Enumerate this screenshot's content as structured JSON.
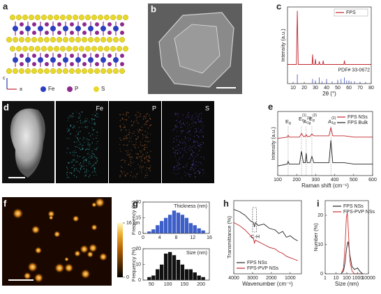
{
  "images": {
    "a": {
      "label": "a",
      "axes": [
        "c",
        "a"
      ],
      "legend": [
        {
          "name": "Fe",
          "color": "#2b3fbf"
        },
        {
          "name": "P",
          "color": "#8e2a8e"
        },
        {
          "name": "S",
          "color": "#e8d82a"
        }
      ]
    },
    "b": {
      "label": "b"
    },
    "d": {
      "label": "d",
      "maps": [
        {
          "name": "Fe",
          "color": "#3fc0c0"
        },
        {
          "name": "P",
          "color": "#c0703a"
        },
        {
          "name": "S",
          "color": "#6a4ad0"
        }
      ]
    },
    "f": {
      "label": "f",
      "colorbar": {
        "ticks": [
          0,
          {
            "value": 16,
            "label": "16 nm"
          }
        ]
      }
    }
  },
  "chart_data": [
    {
      "type": "line",
      "label": "c",
      "xlabel": "2θ (°)",
      "ylabel": "Intensity (a.u.)",
      "xlim": [
        5,
        80
      ],
      "ylim": [
        0,
        100
      ],
      "xticks": [
        10,
        20,
        30,
        40,
        50,
        60,
        70,
        80
      ],
      "legend": "upper right",
      "series": [
        {
          "name": "FPS",
          "color": "#c0262d",
          "x": [
            5,
            13,
            13.8,
            14.6,
            27,
            27.5,
            28,
            29.5,
            30,
            30.5,
            33,
            33.5,
            34,
            36.5,
            37,
            37.5,
            55.5,
            56,
            56.5,
            80
          ],
          "values": [
            25,
            25,
            95,
            25,
            25,
            38,
            25,
            25,
            32,
            25,
            25,
            29,
            25,
            25,
            30,
            25,
            25,
            30,
            25,
            25
          ]
        },
        {
          "name": "PDF# 33-0672",
          "color": "#3b4cc0",
          "mark": "stick",
          "x": [
            13.8,
            27.5,
            30,
            33.5,
            36,
            40,
            45,
            50,
            53,
            56,
            58,
            60,
            62,
            65,
            70,
            75
          ],
          "values": [
            12,
            6,
            4,
            8,
            3,
            6,
            3,
            5,
            6,
            8,
            4,
            4,
            3,
            3,
            2,
            2
          ]
        }
      ]
    },
    {
      "type": "line",
      "label": "e",
      "xlabel": "Raman shift (cm⁻¹)",
      "ylabel": "Intensity (a.u.)",
      "xlim": [
        100,
        600
      ],
      "ylim": [
        0,
        100
      ],
      "xticks": [
        100,
        200,
        300,
        400,
        500,
        600
      ],
      "legend": "upper right",
      "x": [
        100,
        150,
        155,
        160,
        215,
        225,
        235,
        245,
        250,
        255,
        270,
        280,
        290,
        370,
        380,
        390,
        450,
        500,
        600
      ],
      "series": [
        {
          "name": "FPS NSs",
          "color": "#c0262d",
          "values": [
            58,
            60,
            63,
            60,
            60,
            66,
            61,
            61,
            64,
            61,
            61,
            65,
            62,
            62,
            75,
            62,
            62,
            60,
            60
          ]
        },
        {
          "name": "FPS Bulk",
          "color": "#222222",
          "values": [
            15,
            18,
            22,
            18,
            18,
            38,
            20,
            20,
            35,
            20,
            20,
            30,
            20,
            20,
            55,
            20,
            20,
            18,
            18
          ]
        }
      ],
      "peaks": [
        {
          "x": 155,
          "label": {
            "base": "E",
            "sub": "g"
          }
        },
        {
          "x": 225,
          "label": {
            "base": "E",
            "sub": "g",
            "sup": "(1)"
          }
        },
        {
          "x": 250,
          "label": {
            "base": "A",
            "sub": "1g",
            "sup": "(1)"
          }
        },
        {
          "x": 280,
          "label": {
            "base": "E",
            "sub": "g",
            "sup": "(2)"
          }
        },
        {
          "x": 380,
          "label": {
            "base": "A",
            "sub": "1g",
            "sup": "(2)"
          }
        }
      ]
    },
    {
      "type": "histogram",
      "label": "g",
      "title": "Thickness (nm)",
      "ylabel": "Frequency (%)",
      "color": "#3e5fc8",
      "bins": [
        1,
        2,
        3,
        4,
        5,
        6,
        7,
        8,
        9,
        10,
        11,
        12,
        13,
        14,
        15
      ],
      "values": [
        2,
        4,
        8,
        12,
        15,
        18,
        22,
        20,
        18,
        15,
        10,
        8,
        5,
        3
      ],
      "xlim": [
        0,
        16
      ],
      "xticks": [
        0,
        4,
        8,
        12,
        16
      ],
      "ylim": [
        0,
        30
      ],
      "yticks": [
        0,
        15,
        30
      ]
    },
    {
      "type": "histogram",
      "title": "Size (nm)",
      "ylabel": "Frequency (%)",
      "color": "#111111",
      "bins": [
        37.5,
        50,
        62.5,
        75,
        87.5,
        100,
        112.5,
        125,
        137.5,
        150,
        162.5,
        175,
        187.5,
        200,
        212.5
      ],
      "values": [
        2,
        3,
        7,
        10,
        17,
        18,
        16,
        13,
        10,
        7,
        7,
        5,
        3,
        2
      ],
      "xlim": [
        25,
        225
      ],
      "xticks": [
        50,
        100,
        150,
        200
      ],
      "ylim": [
        0,
        20
      ],
      "yticks": [
        0,
        10,
        20
      ]
    },
    {
      "type": "line",
      "label": "h",
      "xlabel": "Wavenumber (cm⁻¹)",
      "ylabel": "Transmittance (%)",
      "xlim": [
        4000,
        400
      ],
      "ylim": [
        0,
        100
      ],
      "xticks": [
        4000,
        3000,
        2000,
        1000
      ],
      "legend": "lower left",
      "x": [
        4000,
        3700,
        3400,
        3100,
        2950,
        2900,
        2850,
        2700,
        2400,
        2100,
        1800,
        1600,
        1400,
        1200,
        1000,
        800,
        600
      ],
      "series": [
        {
          "name": "FPS NSs",
          "color": "#222222",
          "values": [
            88,
            85,
            80,
            72,
            70,
            64,
            70,
            66,
            68,
            62,
            60,
            55,
            58,
            50,
            52,
            48,
            45
          ]
        },
        {
          "name": "FPS-PVP NSs",
          "color": "#c0262d",
          "values": [
            70,
            66,
            60,
            52,
            48,
            42,
            46,
            44,
            40,
            36,
            34,
            30,
            28,
            24,
            22,
            20,
            18
          ]
        }
      ],
      "annotation": {
        "text": "-C-H",
        "x": [
          3000,
          2800
        ]
      }
    },
    {
      "type": "line",
      "label": "i",
      "xlabel": "Size (nm)",
      "ylabel": "Number (%)",
      "xlog": true,
      "xlim": [
        1,
        10000
      ],
      "ylim": [
        0,
        25
      ],
      "xticks": [
        1,
        10,
        100,
        1000,
        10000
      ],
      "yticks": [
        0,
        10,
        20
      ],
      "legend": "upper right",
      "x": [
        30,
        50,
        70,
        90,
        110,
        130,
        160,
        200,
        300,
        500,
        800,
        1000,
        1500,
        2000,
        3000
      ],
      "series": [
        {
          "name": "FPS NSs",
          "color": "#222222",
          "values": [
            0,
            1,
            4,
            8,
            10,
            11,
            9,
            6,
            2.5,
            1.5,
            1.8,
            2,
            1,
            0.5,
            0
          ]
        },
        {
          "name": "FPS-PVP NSs",
          "color": "#d03030",
          "values": [
            0,
            2,
            10,
            19,
            21,
            17,
            10,
            4,
            1,
            0,
            0,
            0,
            0,
            0,
            0
          ]
        }
      ]
    }
  ]
}
